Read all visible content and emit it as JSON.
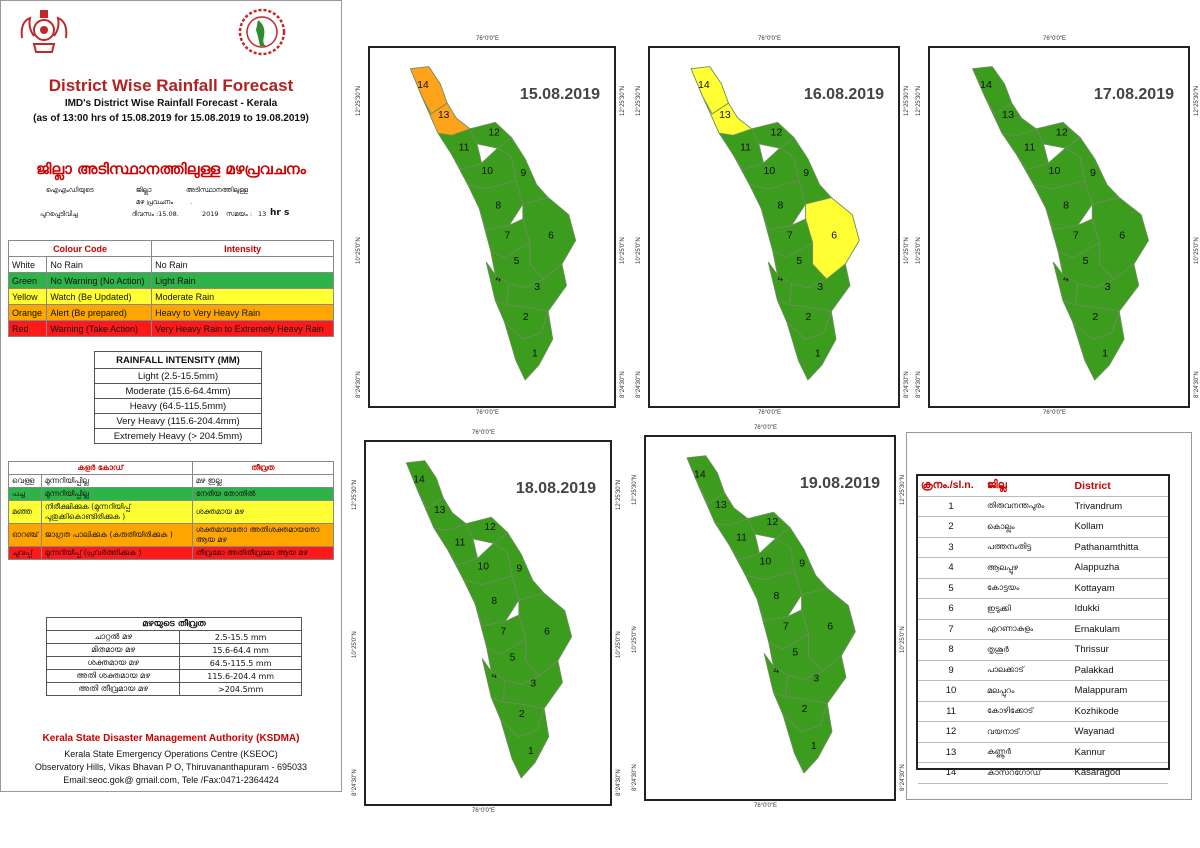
{
  "header": {
    "title": "District Wise Rainfall Forecast",
    "subtitle1": "IMD's District Wise Rainfall Forecast - Kerala",
    "subtitle2": "(as of 13:00 hrs of 15.08.2019  for 15.08.2019 to 19.08.2019)",
    "ml_title": "ജില്ലാ അടിസ്ഥാനത്തിലുള്ള മഴപ്രവചനം",
    "ml_line1a": "ഐഎംഡിയുടെ",
    "ml_line1b": "ജില്ലാ",
    "ml_line1c": "അടിസ്ഥാനത്തിലുള്ള",
    "ml_line2": "മഴ പ്രവചനം",
    "ml_line2b": ".",
    "ml_line3a": "പുറപ്പെടിവിച്ച",
    "ml_line3b": "ദിവസം  :15.08.",
    "ml_line3c": "2019",
    "ml_line3d": "സമയം :",
    "ml_line3e": "13",
    "ml_line3f": "hr s"
  },
  "colour_code": {
    "header_code": "Colour Code",
    "header_intensity": "Intensity",
    "rows": [
      {
        "colour": "White",
        "code": "No Rain",
        "intensity": "No Rain",
        "cls": "white"
      },
      {
        "colour": "Green",
        "code": "No Warning (No Action)",
        "intensity": "Light Rain",
        "cls": "green"
      },
      {
        "colour": "Yellow",
        "code": "Watch (Be Updated)",
        "intensity": "Moderate Rain",
        "cls": "yellow"
      },
      {
        "colour": "Orange",
        "code": "Alert (Be prepared)",
        "intensity": "Heavy to Very Heavy Rain",
        "cls": "orange"
      },
      {
        "colour": "Red",
        "code": "Warning (Take Action)",
        "intensity": "Very Heavy Rain to Extremely Heavy Rain",
        "cls": "red"
      }
    ]
  },
  "rainfall_intensity": {
    "header": "RAINFALL INTENSITY (MM)",
    "rows": [
      "Light (2.5-15.5mm)",
      "Moderate (15.6-64.4mm)",
      "Heavy (64.5-115.5mm)",
      "Very Heavy (115.6-204.4mm)",
      "Extremely Heavy (> 204.5mm)"
    ]
  },
  "ml_colour_code": {
    "header_code": "കളർ കോഡ്",
    "header_intensity": "തീവ്രത",
    "rows": [
      {
        "colour": "വെള്ള",
        "code": "മുന്നറിയിപ്പില്ല",
        "intensity": "മഴ ഇല്ല",
        "cls": "white"
      },
      {
        "colour": "പച്ച",
        "code": "മുന്നറിയിപ്പില്ല",
        "intensity": "നേരിയ തോതിൽ",
        "cls": "green"
      },
      {
        "colour": "മഞ്ഞ",
        "code": "നിരീക്ഷിക്കുക (മുന്നറിയിപ്പ് പുതുക്കികൊണ്ടിരിക്കുക )",
        "intensity": "ശക്തമായ മഴ",
        "cls": "yellow"
      },
      {
        "colour": "ഓറഞ്ച്",
        "code": "ജാഗ്രത പാലിക്കുക (കരുതിയിരിക്കുക )",
        "intensity": "ശക്തമായതോ അതിശക്തമായതോ ആയ മഴ",
        "cls": "orange"
      },
      {
        "colour": "ചുവപ്പ്",
        "code": "മുന്നറിയിപ്പ് (പ്രവർത്തിക്കുക )",
        "intensity": "തീവ്രമോ അതിതീവ്രമോ ആയ മഴ",
        "cls": "red"
      }
    ]
  },
  "ml_intensity": {
    "header": "മഴയുടെ തീവ്രത",
    "rows": [
      {
        "label": "ചാറ്റൽ മഴ",
        "value": "2.5-15.5 mm"
      },
      {
        "label": "മിതമായ മഴ",
        "value": "15.6-64.4 mm"
      },
      {
        "label": "ശക്തമായ മഴ",
        "value": "64.5-115.5 mm"
      },
      {
        "label": "അതി ശക്തമായ മഴ",
        "value": "115.6-204.4 mm"
      },
      {
        "label": "അതി തീവ്രമായ മഴ",
        "value": ">204.5mm"
      }
    ]
  },
  "footer": {
    "org": "Kerala State Disaster Management Authority (KSDMA)",
    "line1": "Kerala State Emergency Operations Centre (KSEOC)",
    "line2": "Observatory Hills, Vikas Bhavan P O, Thiruvananthapuram - 695033",
    "line3": "Email:seoc.gok@ gmail.com, Tele /Fax:0471-2364424"
  },
  "map_labels": {
    "lon": "76°0'0\"E",
    "lat_top": "12°25'30\"N",
    "lat_mid": "10°25'0\"N",
    "lat_bot": "8°24'30\"N"
  },
  "colors": {
    "green": "#3c9c1e",
    "yellow": "#ffff33",
    "orange": "#ffa31a",
    "border": "#6b8e5a"
  },
  "maps": [
    {
      "date": "15.08.2019",
      "district_colors": {
        "14": "orange",
        "13": "orange"
      }
    },
    {
      "date": "16.08.2019",
      "district_colors": {
        "14": "yellow",
        "13": "yellow",
        "6": "yellow"
      }
    },
    {
      "date": "17.08.2019",
      "district_colors": {}
    },
    {
      "date": "18.08.2019",
      "district_colors": {}
    },
    {
      "date": "19.08.2019",
      "district_colors": {}
    }
  ],
  "district_table": {
    "headers": [
      "ക്രനം./sl.n.",
      "ജില്ല",
      "District"
    ],
    "rows": [
      [
        "1",
        "തിരുവനന്തപുരം",
        "Trivandrum"
      ],
      [
        "2",
        "കൊല്ലം",
        "Kollam"
      ],
      [
        "3",
        "പത്തനംതിട്ട",
        "Pathanamthitta"
      ],
      [
        "4",
        "ആലപ്പുഴ",
        "Alappuzha"
      ],
      [
        "5",
        "കോട്ടയം",
        "Kottayam"
      ],
      [
        "6",
        "ഇടുക്കി",
        "Idukki"
      ],
      [
        "7",
        "എറണാകുളം",
        "Ernakulam"
      ],
      [
        "8",
        "തൃശൂർ",
        "Thrissur"
      ],
      [
        "9",
        "പാലക്കാട്",
        "Palakkad"
      ],
      [
        "10",
        "മലപ്പുറം",
        "Malappuram"
      ],
      [
        "11",
        "കോഴിക്കോട്",
        "Kozhikode"
      ],
      [
        "12",
        "വയനാട്",
        "Wayanad"
      ],
      [
        "13",
        "കണ്ണൂർ",
        "Kannur"
      ],
      [
        "14",
        "കാസറഗോഡ്",
        "Kasaragod"
      ]
    ]
  }
}
